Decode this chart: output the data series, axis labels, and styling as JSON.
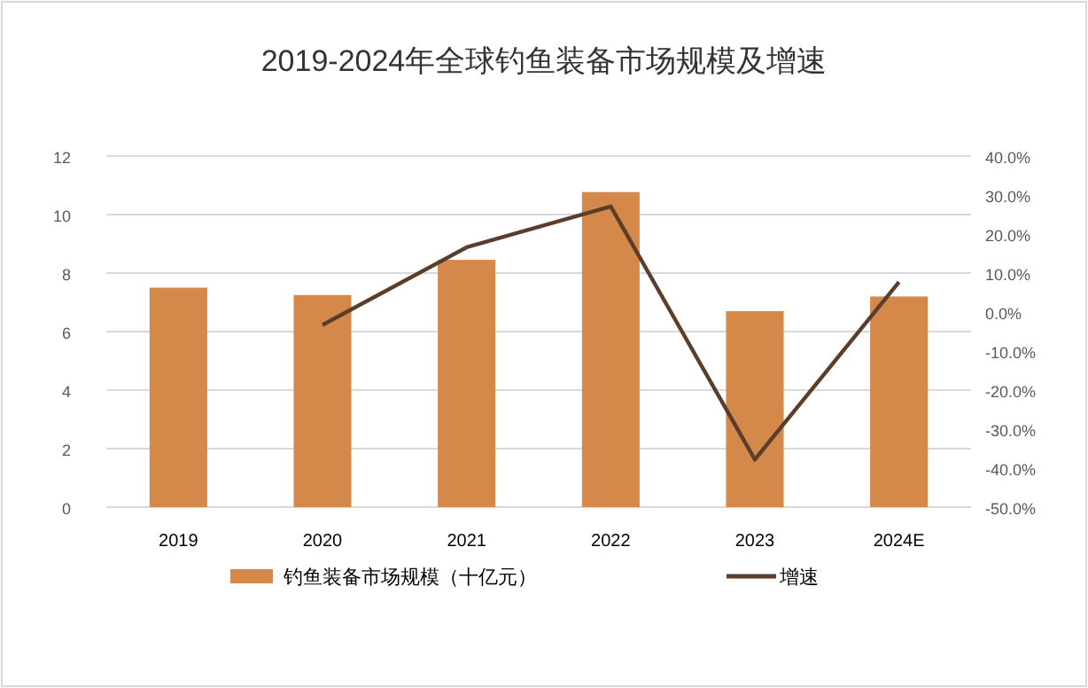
{
  "chart_data": {
    "type": "bar",
    "title": "2019-2024年全球钓鱼装备市场规模及增速",
    "categories": [
      "2019",
      "2020",
      "2021",
      "2022",
      "2023",
      "2024E"
    ],
    "series": [
      {
        "name": "钓鱼装备市场规模（十亿元）",
        "color": "#d4884a",
        "values": [
          7.5,
          7.25,
          8.45,
          10.77,
          6.7,
          7.2
        ]
      },
      {
        "name": "增速",
        "type": "line",
        "axis": "y2",
        "color": "#5a3e2b",
        "values": [
          null,
          -3.3,
          16.6,
          27.1,
          -37.8,
          7.7
        ]
      }
    ],
    "ylim": [
      0,
      12
    ],
    "yticks": [
      0,
      2,
      4,
      6,
      8,
      10,
      12
    ],
    "y2lim": [
      -50,
      40
    ],
    "y2ticks": [
      {
        "value": -50,
        "label": "-50.0%"
      },
      {
        "value": -40,
        "label": "-40.0%"
      },
      {
        "value": -30,
        "label": "-30.0%"
      },
      {
        "value": -20,
        "label": "-20.0%"
      },
      {
        "value": -10,
        "label": "-10.0%"
      },
      {
        "value": 0,
        "label": "0.0%"
      },
      {
        "value": 10,
        "label": "10.0%"
      },
      {
        "value": 20,
        "label": "20.0%"
      },
      {
        "value": 30,
        "label": "30.0%"
      },
      {
        "value": 40,
        "label": "40.0%"
      }
    ],
    "grid": "y",
    "legend": "bottom",
    "marker": "none",
    "line_style": "solid"
  }
}
